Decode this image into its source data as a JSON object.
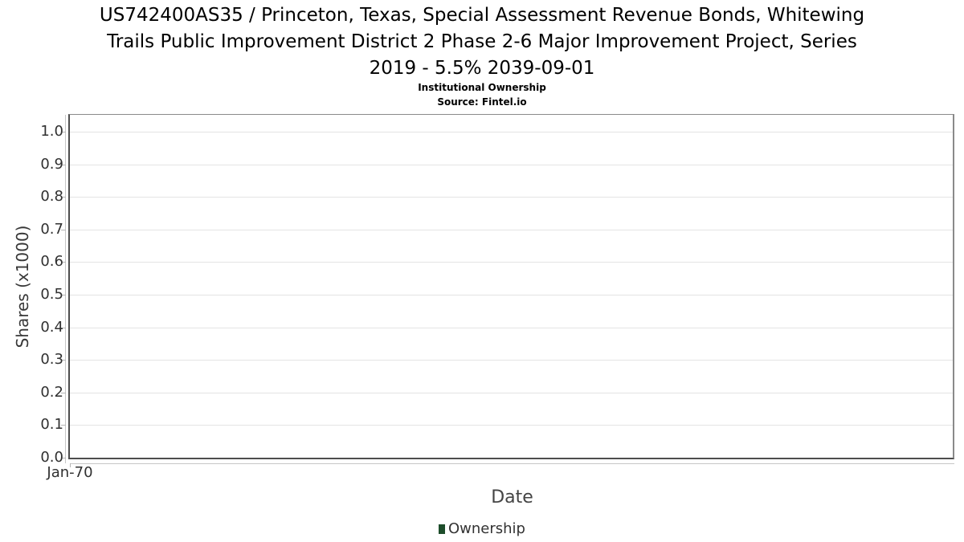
{
  "page": {
    "background": "#ffffff"
  },
  "header": {
    "title_full": "US742400AS35 / Princeton, Texas, Special Assessment Revenue Bonds, Whitewing Trails Public Improvement District 2 Phase 2-6 Major Improvement Project, Series 2019 - 5.5% 2039-09-01",
    "title_lines": [
      "US742400AS35 / Princeton, Texas, Special Assessment Revenue Bonds, Whitewing",
      "Trails Public Improvement District 2 Phase 2-6 Major Improvement Project, Series",
      "2019 - 5.5% 2039-09-01"
    ],
    "subtitle": "Institutional Ownership",
    "source": "Source: Fintel.io"
  },
  "chart_data": {
    "type": "line",
    "title": "US742400AS35 / Princeton, Texas, Special Assessment Revenue Bonds, Whitewing Trails Public Improvement District 2 Phase 2-6 Major Improvement Project, Series 2019 - 5.5% 2039-09-01",
    "subtitle": "Institutional Ownership",
    "source": "Source: Fintel.io",
    "xlabel": "Date",
    "ylabel": "Shares (x1000)",
    "x_tick_labels": [
      "Jan-70"
    ],
    "y_tick_labels": [
      "0.0",
      "0.1",
      "0.2",
      "0.3",
      "0.4",
      "0.5",
      "0.6",
      "0.7",
      "0.8",
      "0.9",
      "1.0"
    ],
    "y_tick_values": [
      0.0,
      0.1,
      0.2,
      0.3,
      0.4,
      0.5,
      0.6,
      0.7,
      0.8,
      0.9,
      1.0
    ],
    "ylim": [
      0.0,
      1.05
    ],
    "grid": true,
    "legend_position": "bottom",
    "series": [
      {
        "name": "Ownership",
        "color": "#1d4d2b",
        "x": [],
        "values": []
      }
    ],
    "colors": {
      "gridline": "#e4e4e4",
      "axis_line": "#c6c6c6",
      "plot_border": "#8a8a8a"
    }
  }
}
